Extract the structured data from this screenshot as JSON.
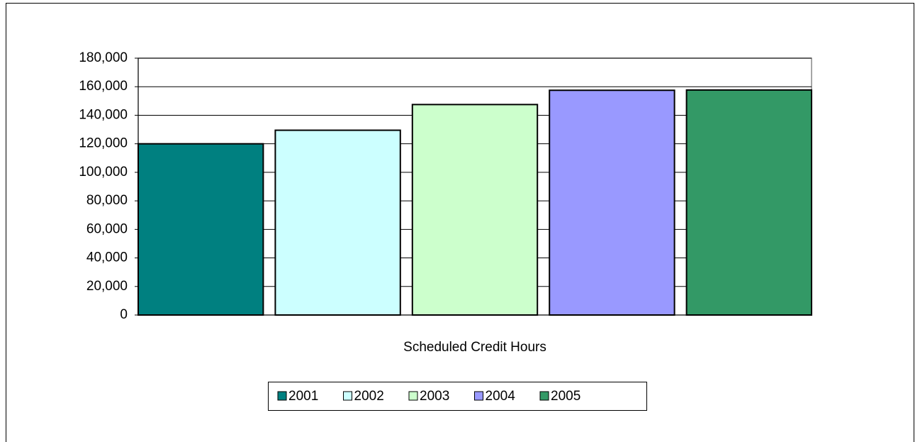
{
  "chart_data": {
    "type": "bar",
    "categories": [
      "Scheduled Credit Hours"
    ],
    "series": [
      {
        "name": "2001",
        "color": "#008080",
        "values": [
          120000
        ]
      },
      {
        "name": "2002",
        "color": "#ccffff",
        "values": [
          129500
        ]
      },
      {
        "name": "2003",
        "color": "#ccffcc",
        "values": [
          147500
        ]
      },
      {
        "name": "2004",
        "color": "#9999ff",
        "values": [
          157500
        ]
      },
      {
        "name": "2005",
        "color": "#339966",
        "values": [
          157700
        ]
      }
    ],
    "ylim": [
      0,
      180000
    ],
    "yticks": [
      0,
      {
        "value": 20000,
        "label": "20,000"
      },
      {
        "value": 40000,
        "label": "40,000"
      },
      {
        "value": 60000,
        "label": "60,000"
      },
      {
        "value": 80000,
        "label": "80,000"
      },
      {
        "value": 100000,
        "label": "100,000"
      },
      {
        "value": 120000,
        "label": "120,000"
      },
      {
        "value": 140000,
        "label": "140,000"
      },
      {
        "value": 160000,
        "label": "160,000"
      },
      {
        "value": 180000,
        "label": "180,000"
      }
    ],
    "grid": true,
    "legend": "bottom"
  }
}
